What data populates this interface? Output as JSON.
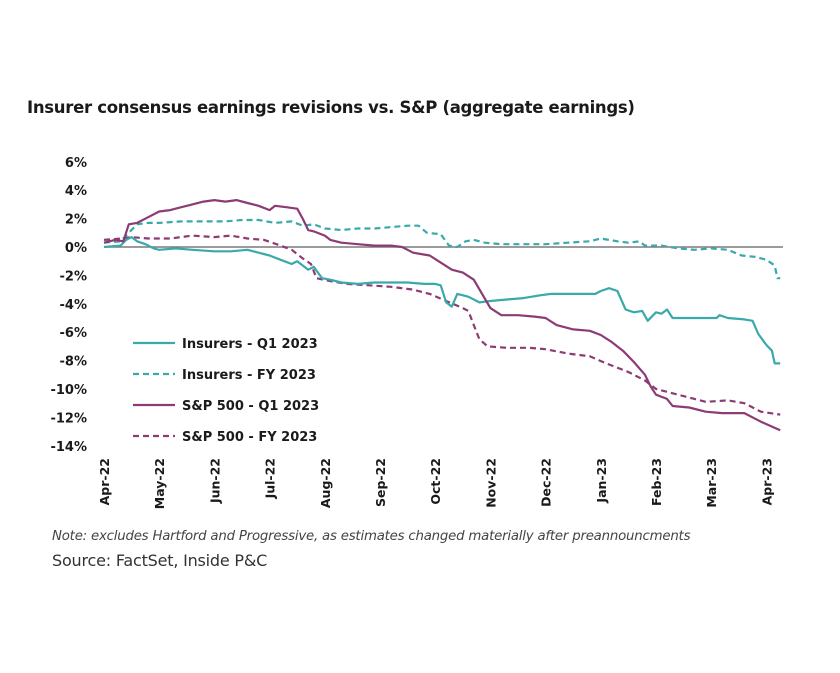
{
  "title": "Insurer consensus earnings revisions vs. S&P (aggregate earnings)",
  "note": "Note: excludes Hartford and Progressive, as estimates changed materially after preannouncments",
  "source": "Source: FactSet, Inside P&C",
  "colors": {
    "teal": "#3aa9aa",
    "purple": "#8c3b74",
    "zero_line": "#7a7a7a"
  },
  "chart_data": {
    "type": "line",
    "title": "Insurer consensus earnings revisions vs. S&P (aggregate earnings)",
    "xlabel": "",
    "ylabel": "",
    "ylim": [
      -14,
      6
    ],
    "yticks": [
      "6%",
      "4%",
      "2%",
      "0%",
      "-2%",
      "-4%",
      "-6%",
      "-8%",
      "-10%",
      "-12%",
      "-14%"
    ],
    "ytick_values": [
      6,
      4,
      2,
      0,
      -2,
      -4,
      -6,
      -8,
      -10,
      -12,
      -14
    ],
    "categories": [
      "Apr-22",
      "May-22",
      "Jun-22",
      "Jul-22",
      "Aug-22",
      "Sep-22",
      "Oct-22",
      "Nov-22",
      "Dec-22",
      "Jan-23",
      "Feb-23",
      "Mar-23",
      "Apr-23"
    ],
    "x_unit": "months since Apr-22",
    "grid": false,
    "zero_line": true,
    "legend_position": "lower-left inside",
    "series": [
      {
        "name": "Insurers - Q1 2023",
        "color": "teal",
        "style": "solid",
        "points": [
          [
            0,
            0
          ],
          [
            0.3,
            0.1
          ],
          [
            0.4,
            0.5
          ],
          [
            0.5,
            0.7
          ],
          [
            0.6,
            0.4
          ],
          [
            0.75,
            0.2
          ],
          [
            0.9,
            -0.1
          ],
          [
            1.0,
            -0.2
          ],
          [
            1.3,
            -0.1
          ],
          [
            1.6,
            -0.2
          ],
          [
            2.0,
            -0.3
          ],
          [
            2.3,
            -0.3
          ],
          [
            2.6,
            -0.2
          ],
          [
            2.8,
            -0.4
          ],
          [
            3.0,
            -0.6
          ],
          [
            3.2,
            -0.9
          ],
          [
            3.4,
            -1.2
          ],
          [
            3.5,
            -1.0
          ],
          [
            3.7,
            -1.6
          ],
          [
            3.8,
            -1.4
          ],
          [
            3.95,
            -2.2
          ],
          [
            4.1,
            -2.3
          ],
          [
            4.3,
            -2.5
          ],
          [
            4.6,
            -2.6
          ],
          [
            4.9,
            -2.5
          ],
          [
            5.2,
            -2.5
          ],
          [
            5.5,
            -2.5
          ],
          [
            5.8,
            -2.6
          ],
          [
            6.0,
            -2.6
          ],
          [
            6.1,
            -2.7
          ],
          [
            6.2,
            -3.9
          ],
          [
            6.3,
            -4.2
          ],
          [
            6.4,
            -3.3
          ],
          [
            6.6,
            -3.5
          ],
          [
            6.8,
            -3.9
          ],
          [
            7.0,
            -3.8
          ],
          [
            7.3,
            -3.7
          ],
          [
            7.6,
            -3.6
          ],
          [
            7.9,
            -3.4
          ],
          [
            8.1,
            -3.3
          ],
          [
            8.5,
            -3.3
          ],
          [
            8.9,
            -3.3
          ],
          [
            9.0,
            -3.1
          ],
          [
            9.15,
            -2.9
          ],
          [
            9.3,
            -3.1
          ],
          [
            9.45,
            -4.4
          ],
          [
            9.6,
            -4.6
          ],
          [
            9.75,
            -4.5
          ],
          [
            9.85,
            -5.2
          ],
          [
            10.0,
            -4.6
          ],
          [
            10.1,
            -4.7
          ],
          [
            10.2,
            -4.4
          ],
          [
            10.3,
            -5.0
          ],
          [
            10.6,
            -5.0
          ],
          [
            10.9,
            -5.0
          ],
          [
            11.1,
            -5.0
          ],
          [
            11.15,
            -4.8
          ],
          [
            11.3,
            -5.0
          ],
          [
            11.6,
            -5.1
          ],
          [
            11.75,
            -5.2
          ],
          [
            11.85,
            -6.1
          ],
          [
            12.0,
            -6.9
          ],
          [
            12.1,
            -7.3
          ],
          [
            12.15,
            -8.2
          ],
          [
            12.25,
            -8.2
          ]
        ]
      },
      {
        "name": "Insurers - FY 2023",
        "color": "teal",
        "style": "dashed",
        "points": [
          [
            0,
            0.3
          ],
          [
            0.3,
            0.4
          ],
          [
            0.45,
            1.0
          ],
          [
            0.6,
            1.6
          ],
          [
            0.8,
            1.7
          ],
          [
            1.0,
            1.7
          ],
          [
            1.4,
            1.8
          ],
          [
            1.8,
            1.8
          ],
          [
            2.2,
            1.8
          ],
          [
            2.5,
            1.9
          ],
          [
            2.8,
            1.9
          ],
          [
            3.1,
            1.7
          ],
          [
            3.4,
            1.8
          ],
          [
            3.6,
            1.5
          ],
          [
            3.8,
            1.6
          ],
          [
            4.0,
            1.3
          ],
          [
            4.3,
            1.2
          ],
          [
            4.6,
            1.3
          ],
          [
            4.9,
            1.3
          ],
          [
            5.2,
            1.4
          ],
          [
            5.5,
            1.5
          ],
          [
            5.7,
            1.5
          ],
          [
            5.85,
            1.0
          ],
          [
            6.1,
            0.9
          ],
          [
            6.25,
            0.1
          ],
          [
            6.4,
            0.0
          ],
          [
            6.55,
            0.4
          ],
          [
            6.7,
            0.5
          ],
          [
            6.9,
            0.3
          ],
          [
            7.2,
            0.2
          ],
          [
            7.6,
            0.2
          ],
          [
            8.0,
            0.2
          ],
          [
            8.4,
            0.3
          ],
          [
            8.8,
            0.4
          ],
          [
            9.0,
            0.6
          ],
          [
            9.3,
            0.4
          ],
          [
            9.5,
            0.3
          ],
          [
            9.7,
            0.4
          ],
          [
            9.8,
            0.1
          ],
          [
            10.1,
            0.1
          ],
          [
            10.4,
            -0.1
          ],
          [
            10.7,
            -0.2
          ],
          [
            11.0,
            -0.1
          ],
          [
            11.3,
            -0.2
          ],
          [
            11.55,
            -0.6
          ],
          [
            11.8,
            -0.7
          ],
          [
            12.0,
            -0.9
          ],
          [
            12.15,
            -1.3
          ],
          [
            12.2,
            -2.2
          ],
          [
            12.25,
            -2.2
          ]
        ]
      },
      {
        "name": "S&P 500 - Q1 2023",
        "color": "purple",
        "style": "solid",
        "points": [
          [
            0,
            0.3
          ],
          [
            0.2,
            0.5
          ],
          [
            0.35,
            0.4
          ],
          [
            0.45,
            1.6
          ],
          [
            0.6,
            1.7
          ],
          [
            0.8,
            2.1
          ],
          [
            1.0,
            2.5
          ],
          [
            1.2,
            2.6
          ],
          [
            1.4,
            2.8
          ],
          [
            1.6,
            3.0
          ],
          [
            1.8,
            3.2
          ],
          [
            2.0,
            3.3
          ],
          [
            2.2,
            3.2
          ],
          [
            2.4,
            3.3
          ],
          [
            2.6,
            3.1
          ],
          [
            2.8,
            2.9
          ],
          [
            3.0,
            2.6
          ],
          [
            3.1,
            2.9
          ],
          [
            3.3,
            2.8
          ],
          [
            3.5,
            2.7
          ],
          [
            3.6,
            2.0
          ],
          [
            3.7,
            1.2
          ],
          [
            3.8,
            1.1
          ],
          [
            4.0,
            0.8
          ],
          [
            4.1,
            0.5
          ],
          [
            4.3,
            0.3
          ],
          [
            4.6,
            0.2
          ],
          [
            4.9,
            0.1
          ],
          [
            5.2,
            0.1
          ],
          [
            5.4,
            0.0
          ],
          [
            5.6,
            -0.4
          ],
          [
            5.9,
            -0.6
          ],
          [
            6.1,
            -1.1
          ],
          [
            6.3,
            -1.6
          ],
          [
            6.5,
            -1.8
          ],
          [
            6.7,
            -2.3
          ],
          [
            6.85,
            -3.3
          ],
          [
            7.0,
            -4.3
          ],
          [
            7.2,
            -4.8
          ],
          [
            7.5,
            -4.8
          ],
          [
            7.8,
            -4.9
          ],
          [
            8.0,
            -5.0
          ],
          [
            8.2,
            -5.5
          ],
          [
            8.5,
            -5.8
          ],
          [
            8.8,
            -5.9
          ],
          [
            9.0,
            -6.2
          ],
          [
            9.2,
            -6.7
          ],
          [
            9.4,
            -7.3
          ],
          [
            9.6,
            -8.1
          ],
          [
            9.8,
            -9.0
          ],
          [
            9.9,
            -9.8
          ],
          [
            10.0,
            -10.4
          ],
          [
            10.2,
            -10.7
          ],
          [
            10.3,
            -11.2
          ],
          [
            10.6,
            -11.3
          ],
          [
            10.9,
            -11.6
          ],
          [
            11.2,
            -11.7
          ],
          [
            11.6,
            -11.7
          ],
          [
            11.9,
            -12.3
          ],
          [
            12.25,
            -12.9
          ]
        ]
      },
      {
        "name": "S&P 500 - FY 2023",
        "color": "purple",
        "style": "dashed",
        "points": [
          [
            0,
            0.5
          ],
          [
            0.3,
            0.6
          ],
          [
            0.5,
            0.7
          ],
          [
            0.8,
            0.6
          ],
          [
            1.2,
            0.6
          ],
          [
            1.6,
            0.8
          ],
          [
            2.0,
            0.7
          ],
          [
            2.3,
            0.8
          ],
          [
            2.6,
            0.6
          ],
          [
            2.9,
            0.5
          ],
          [
            3.2,
            0.1
          ],
          [
            3.4,
            -0.2
          ],
          [
            3.6,
            -0.8
          ],
          [
            3.75,
            -1.2
          ],
          [
            3.85,
            -2.2
          ],
          [
            4.1,
            -2.4
          ],
          [
            4.4,
            -2.6
          ],
          [
            4.8,
            -2.7
          ],
          [
            5.2,
            -2.8
          ],
          [
            5.6,
            -3.0
          ],
          [
            5.9,
            -3.3
          ],
          [
            6.2,
            -3.8
          ],
          [
            6.5,
            -4.3
          ],
          [
            6.6,
            -4.5
          ],
          [
            6.7,
            -5.5
          ],
          [
            6.8,
            -6.5
          ],
          [
            6.95,
            -7.0
          ],
          [
            7.3,
            -7.1
          ],
          [
            7.7,
            -7.1
          ],
          [
            8.0,
            -7.2
          ],
          [
            8.4,
            -7.5
          ],
          [
            8.8,
            -7.7
          ],
          [
            9.1,
            -8.2
          ],
          [
            9.5,
            -8.8
          ],
          [
            9.8,
            -9.4
          ],
          [
            10.0,
            -10.0
          ],
          [
            10.3,
            -10.3
          ],
          [
            10.6,
            -10.6
          ],
          [
            10.9,
            -10.9
          ],
          [
            11.3,
            -10.8
          ],
          [
            11.6,
            -11.0
          ],
          [
            11.9,
            -11.6
          ],
          [
            12.25,
            -11.8
          ]
        ]
      }
    ]
  }
}
